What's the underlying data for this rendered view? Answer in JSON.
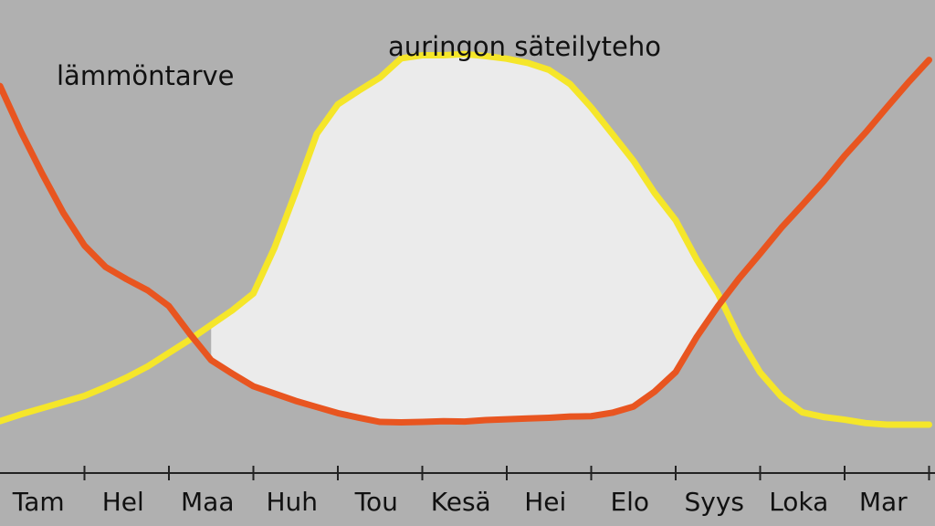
{
  "chart_data": {
    "type": "line",
    "categories": [
      "Tam",
      "Hel",
      "Maa",
      "Huh",
      "Tou",
      "Kesä",
      "Hei",
      "Elo",
      "Syys",
      "Loka",
      "Mar"
    ],
    "x": [
      0,
      0.25,
      0.5,
      0.75,
      1,
      1.25,
      1.5,
      1.75,
      2,
      2.25,
      2.5,
      2.75,
      3,
      3.25,
      3.5,
      3.75,
      4,
      4.25,
      4.5,
      4.75,
      5,
      5.25,
      5.5,
      5.75,
      6,
      6.25,
      6.5,
      6.75,
      7,
      7.25,
      7.5,
      7.75,
      8,
      8.25,
      8.5,
      8.75,
      9,
      9.25,
      9.5,
      9.75,
      10,
      10.25,
      10.5,
      10.75,
      11
    ],
    "series": [
      {
        "name": "lämmöntarve",
        "values": [
          88.3,
          76.3,
          65.4,
          55.2,
          46.7,
          41.1,
          37.9,
          35.0,
          30.9,
          23.6,
          16.8,
          13.3,
          10.0,
          8.1,
          6.2,
          4.6,
          3.0,
          1.8,
          0.7,
          0.6,
          0.7,
          0.9,
          0.8,
          1.2,
          1.4,
          1.6,
          1.8,
          2.1,
          2.2,
          3.1,
          4.7,
          8.6,
          13.7,
          22.9,
          30.9,
          38.1,
          44.6,
          51.3,
          57.3,
          63.4,
          70.1,
          76.2,
          82.7,
          89.1,
          95.1
        ],
        "color": "#e85520"
      },
      {
        "name": "auringon säteilyteho",
        "values": [
          0.9,
          2.7,
          4.3,
          5.9,
          7.5,
          9.8,
          12.3,
          15.2,
          18.7,
          22.2,
          26.0,
          29.8,
          34.2,
          46.1,
          60.6,
          75.8,
          83.5,
          87.1,
          90.5,
          95.5,
          96.3,
          96.3,
          96.6,
          96.1,
          95.4,
          94.3,
          92.5,
          88.8,
          82.7,
          75.8,
          68.8,
          60.4,
          53.3,
          43.0,
          34.2,
          22.8,
          13.6,
          7.3,
          3.2,
          2.0,
          1.3,
          0.4,
          0.0,
          0.0,
          0.0
        ],
        "color": "#f5e62a"
      }
    ],
    "series_labels": [
      "lämmöntarve",
      "auringon säteilyteho"
    ],
    "ylim": [
      0,
      100
    ],
    "grid": false,
    "colors": {
      "background": "#b0b0b0",
      "fill": "#ebebeb",
      "axis": "#222222"
    }
  }
}
